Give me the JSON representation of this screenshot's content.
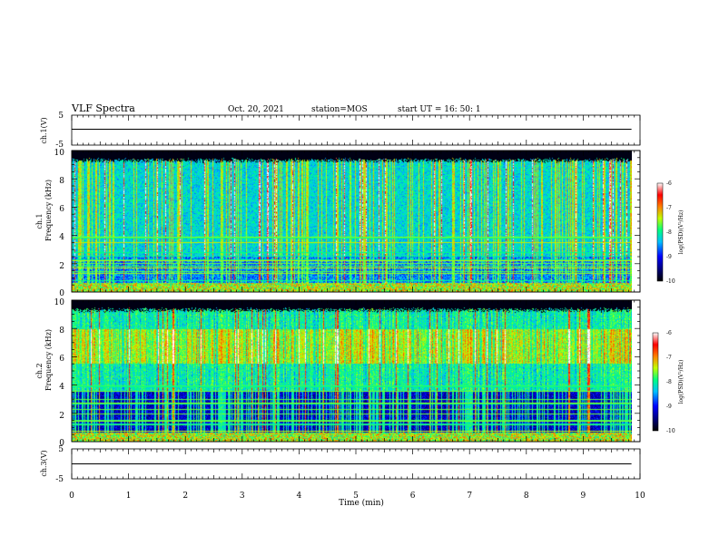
{
  "header": {
    "title": "VLF Spectra",
    "date": "Oct. 20, 2021",
    "station": "station=MOS",
    "start": "start  UT  =   16: 50: 1"
  },
  "colors": {
    "background": "#ffffff",
    "axis": "#000000",
    "spectrogram_floor": "#000000",
    "colormap": [
      "#000000",
      "#00007a",
      "#0000ff",
      "#00c0ff",
      "#00ff80",
      "#c0ff00",
      "#ff8000",
      "#ff0000",
      "#ffffff"
    ]
  },
  "chart_data": [
    {
      "type": "line",
      "ylabel": "ch.1(V)",
      "ylim": [
        -5,
        5
      ],
      "yticks": [
        "5",
        "-5"
      ],
      "xlim": [
        0,
        10
      ],
      "series": [
        {
          "x": [
            0,
            9.85
          ],
          "y": [
            0,
            0
          ]
        }
      ]
    },
    {
      "type": "heatmap",
      "ylabel_lines": [
        "ch.1",
        "Frequency (kHz)"
      ],
      "ylim": [
        0,
        10
      ],
      "yticks": [
        "0",
        "2",
        "4",
        "6",
        "8",
        "10"
      ],
      "xlim": [
        0,
        10
      ],
      "data_end": 9.85,
      "band_top_khz": 9.0,
      "noise_floor_khz": 2.5,
      "dominant_color": "#0000ff",
      "colorbar": {
        "label": "log(PSD)(V²/Hz)",
        "range": [
          -10,
          -6
        ],
        "ticks": [
          "-6",
          "-7",
          "-8",
          "-9",
          "-10"
        ]
      }
    },
    {
      "type": "heatmap",
      "ylabel_lines": [
        "ch.2",
        "Frequency (kHz)"
      ],
      "ylim": [
        0,
        10
      ],
      "yticks": [
        "0",
        "2",
        "4",
        "6",
        "8",
        "10"
      ],
      "xlim": [
        0,
        10
      ],
      "data_end": 9.85,
      "band_top_khz": 9.0,
      "peak_band_khz": [
        5.5,
        8.0
      ],
      "dominant_color": "#ff0000",
      "colorbar": {
        "label": "log(PSD)(V²/Hz)",
        "range": [
          -10,
          -6
        ],
        "ticks": [
          "-6",
          "-7",
          "-8",
          "-9",
          "-10"
        ]
      }
    },
    {
      "type": "line",
      "ylabel": "ch.3(V)",
      "ylim": [
        -5,
        5
      ],
      "yticks": [
        "5",
        "-5"
      ],
      "xlim": [
        0,
        10
      ],
      "xlabel": "Time  (min)",
      "xticks": [
        "0",
        "1",
        "2",
        "3",
        "4",
        "5",
        "6",
        "7",
        "8",
        "9",
        "10"
      ],
      "series": [
        {
          "x": [
            0,
            9.85
          ],
          "y": [
            0,
            0
          ]
        }
      ]
    }
  ]
}
